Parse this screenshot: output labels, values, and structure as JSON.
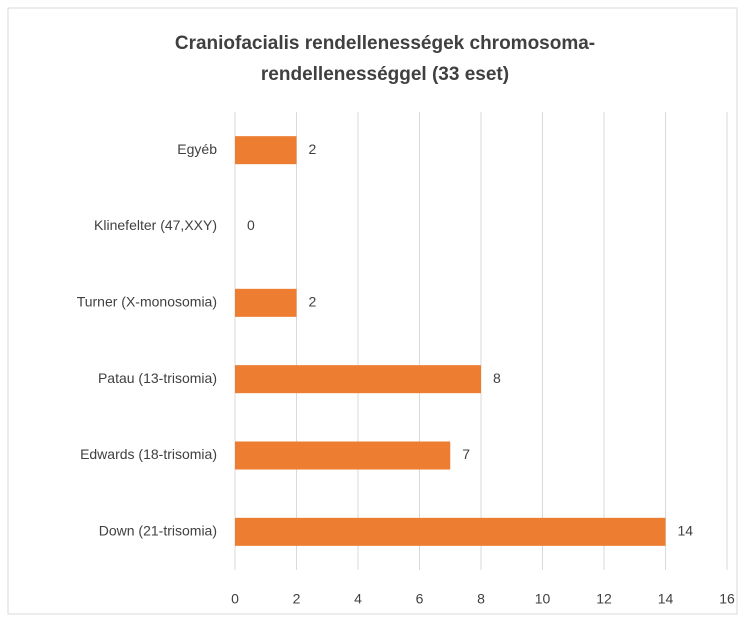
{
  "chart_data": {
    "type": "bar",
    "orientation": "horizontal",
    "title": [
      "Craniofacialis rendellenességek chromosoma-",
      "rendellenességgel  (33 eset)"
    ],
    "categories": [
      "Egyéb",
      "Klinefelter (47,XXY)",
      "Turner (X-monosomia)",
      "Patau (13-trisomia)",
      "Edwards (18-trisomia)",
      "Down (21-trisomia)"
    ],
    "values": [
      2,
      0,
      2,
      8,
      7,
      14
    ],
    "color": "#ed7d31",
    "xlim": [
      0,
      16
    ],
    "xticks": [
      0,
      2,
      4,
      6,
      8,
      10,
      12,
      14,
      16
    ],
    "grid": true
  }
}
